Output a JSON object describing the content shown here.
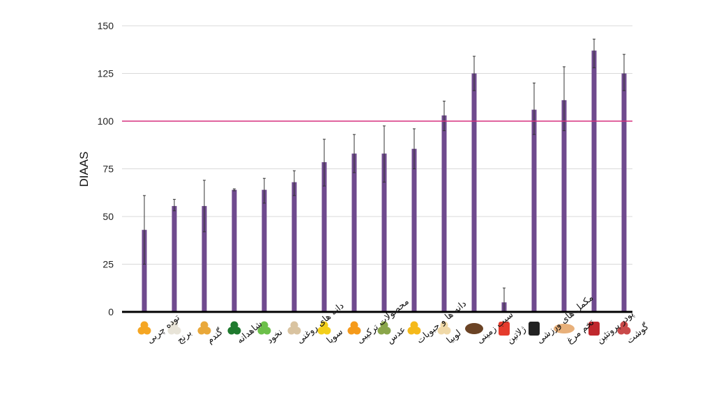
{
  "chart_data": {
    "type": "bar",
    "title": "",
    "xlabel": "",
    "ylabel": "DIAAS",
    "ylim": [
      0,
      150
    ],
    "yticks": [
      0,
      25,
      50,
      75,
      100,
      125,
      150
    ],
    "grid": true,
    "reference_line": {
      "value": 100,
      "color": "#d6307f"
    },
    "bar_color": "#6f4a8e",
    "categories": [
      "توده چربی",
      "برنج",
      "گندم",
      "شاهدانه",
      "نخود",
      "دانه های روغنی",
      "سویا",
      "محصولات ترکیبی",
      "عدس",
      "دانه ها و حبوبات",
      "لوبیا",
      "سیب زمینی",
      "ژلاتین",
      "مکمل های ورزشی",
      "تخم مرغ",
      "پودر پروتئین",
      "گوشت"
    ],
    "icons": [
      "corn-icon",
      "rice-icon",
      "wheat-icon",
      "hemp-icon",
      "chickpea-icon",
      "seeds-icon",
      "soy-flower-icon",
      "mixed-products-icon",
      "lentil-icon",
      "legumes-icon",
      "bean-icon",
      "potato-icon",
      "gelatin-icon",
      "supplement-icon",
      "egg-icon",
      "protein-powder-icon",
      "meat-icon"
    ],
    "icon_colors": [
      "#f5a623",
      "#e8e4d8",
      "#e9a83a",
      "#1f7a2e",
      "#6cc04a",
      "#d9c3a0",
      "#f3cf1a",
      "#f59a1a",
      "#8aa64a",
      "#f5b91a",
      "#f0d9a8",
      "#6b4325",
      "#e53b2c",
      "#222222",
      "#e8b07a",
      "#c0282d",
      "#c94a4a"
    ],
    "values": [
      43,
      55.5,
      55.5,
      64,
      64,
      68,
      78.5,
      83,
      83,
      85.5,
      103,
      125,
      5,
      106,
      111,
      137,
      125
    ],
    "error_low": [
      25,
      53,
      42,
      63.5,
      57,
      61,
      66,
      73,
      68,
      75,
      95,
      116,
      0,
      93,
      95,
      128,
      116
    ],
    "error_high": [
      61,
      59,
      69,
      64.5,
      70,
      74,
      90.5,
      93,
      97.5,
      96,
      110.5,
      134,
      12.5,
      120,
      128.5,
      143,
      135
    ]
  }
}
